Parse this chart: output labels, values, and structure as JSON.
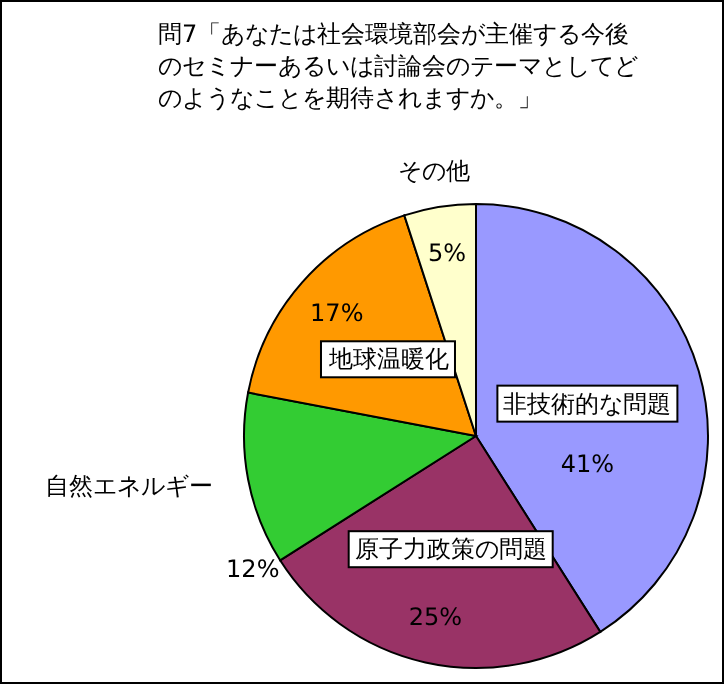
{
  "chart_data": {
    "type": "pie",
    "title": "問7「あなたは社会環境部会が主催する今後のセミナーあるいは討論会のテーマとしてどのようなことを期待されますか。」",
    "categories": [
      "非技術的な問題",
      "原子力政策の問題",
      "自然エネルギー",
      "地球温暖化",
      "その他"
    ],
    "values": [
      41,
      25,
      12,
      17,
      5
    ],
    "value_labels": [
      "41%",
      "25%",
      "12%",
      "17%",
      "5%"
    ],
    "colors": [
      "#9999ff",
      "#993366",
      "#33cc33",
      "#ff9900",
      "#ffffcc"
    ]
  }
}
